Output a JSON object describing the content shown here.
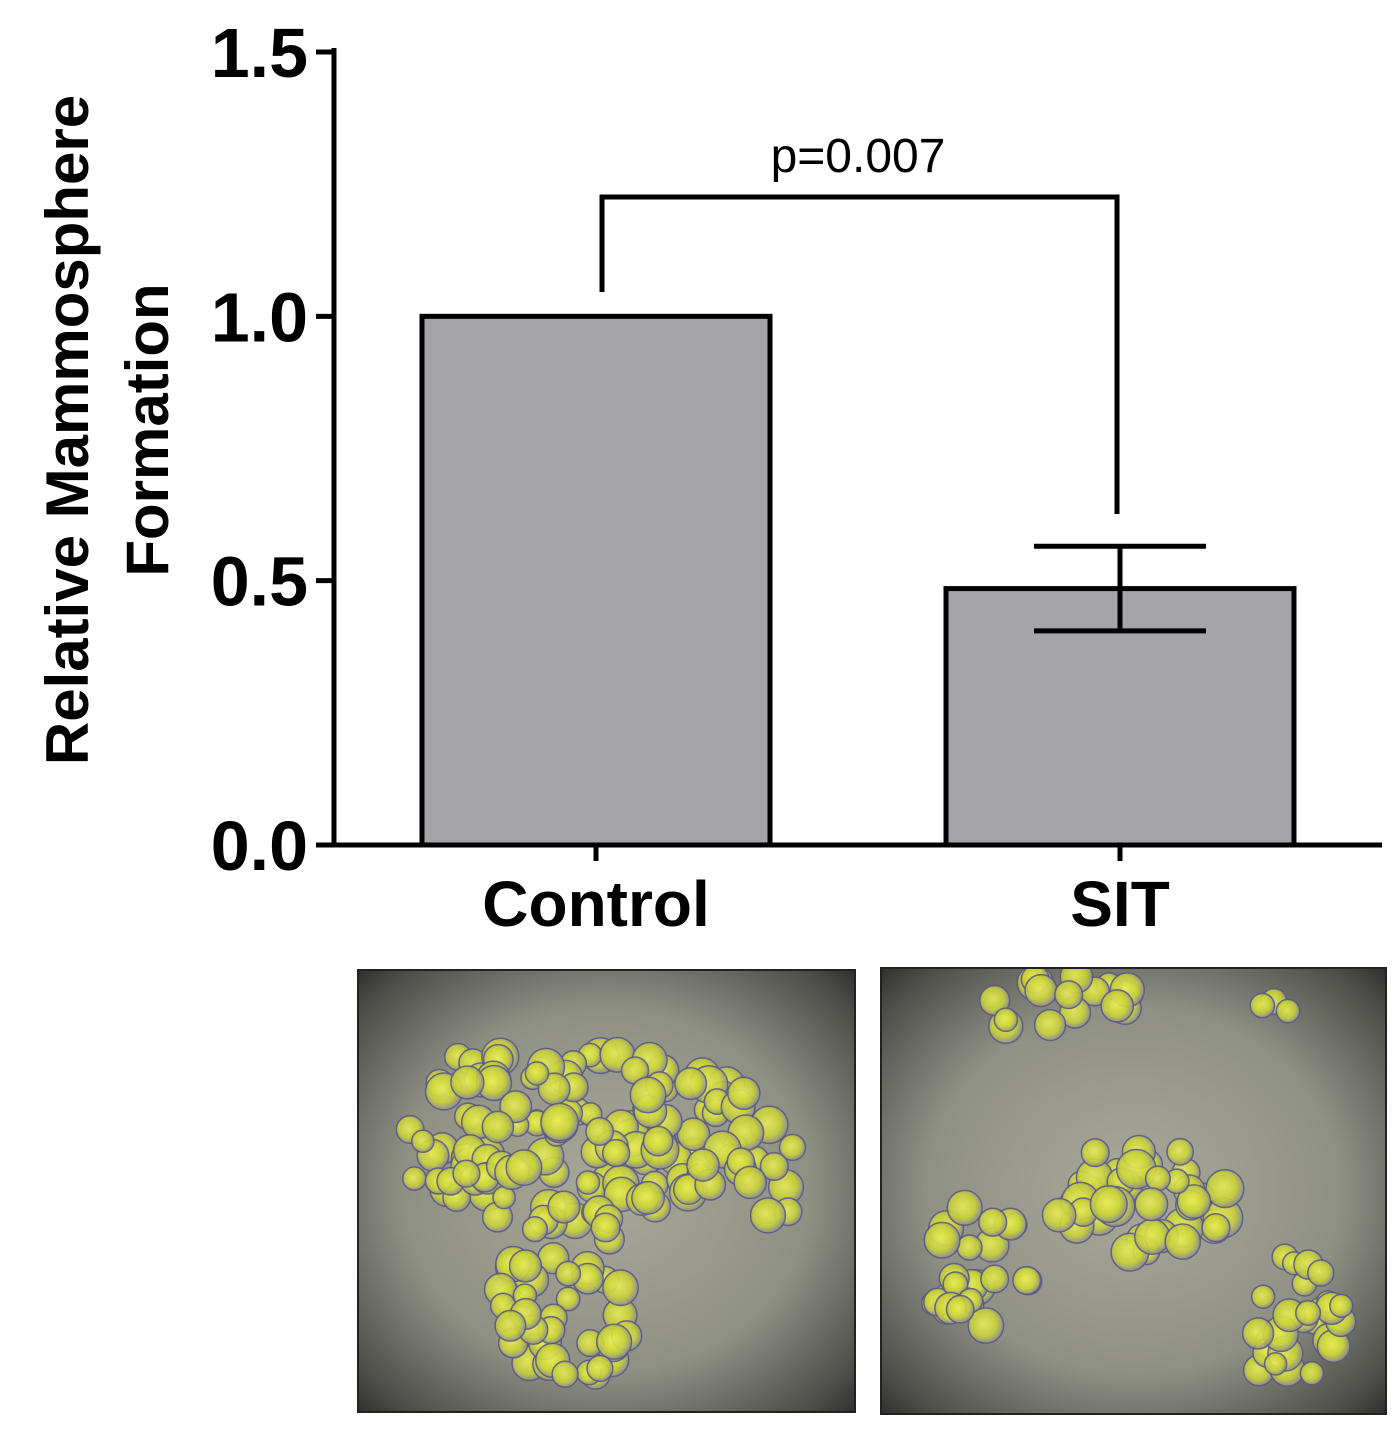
{
  "chart_data": {
    "type": "bar",
    "categories": [
      "Control",
      "SIT"
    ],
    "values": [
      1.0,
      0.485
    ],
    "error_bars": [
      {
        "category": "Control",
        "plus": 0,
        "minus": 0
      },
      {
        "category": "SIT",
        "plus": 0.08,
        "minus": 0.08
      }
    ],
    "ylabel_lines": [
      "Relative Mammosphere",
      "Formation"
    ],
    "xlabel": "",
    "ylim": [
      0,
      1.5
    ],
    "yticks": [
      0.0,
      0.5,
      1.0,
      1.5
    ],
    "ytick_labels": [
      "0.0",
      "0.5",
      "1.0",
      "1.5"
    ],
    "grid": false,
    "bar_color": "#a4a3a8",
    "significance": {
      "between": [
        "Control",
        "SIT"
      ],
      "label": "p=0.007"
    }
  },
  "micrographs": [
    {
      "name": "control-micrograph",
      "description_icon": "cell-cluster-large"
    },
    {
      "name": "sit-micrograph",
      "description_icon": "cell-cluster-small"
    }
  ]
}
